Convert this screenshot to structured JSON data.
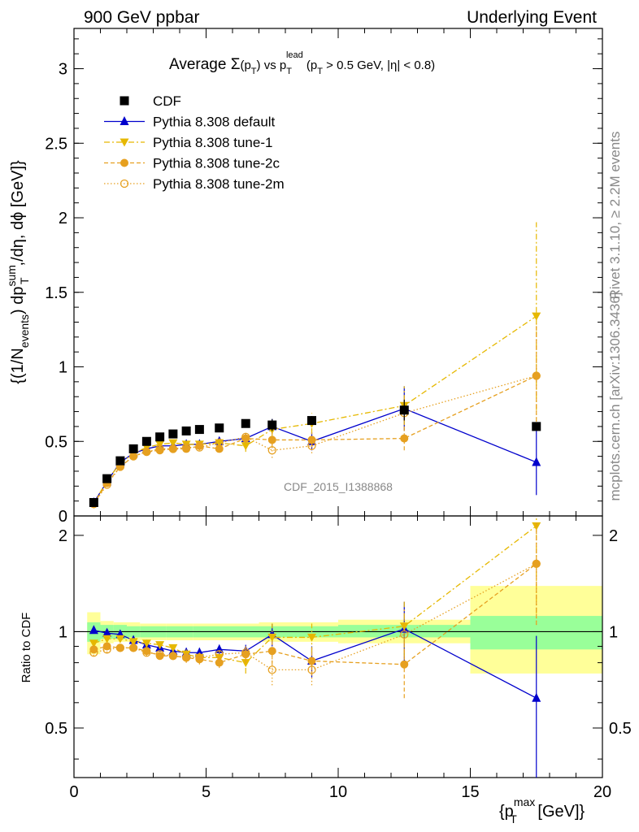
{
  "header": {
    "left": "900 GeV ppbar",
    "right": "Underlying Event"
  },
  "side_text": {
    "rivet": "Rivet 3.1.10, ≥ 2.2M events",
    "mcplots": "mcplots.cern.ch [arXiv:1306.3436]"
  },
  "chart_data": [
    {
      "type": "scatter",
      "panel": "main",
      "title_parts": {
        "a": "Average ",
        "sym": "Σ",
        "pt": "(p",
        "t": "T",
        "c": ") vs p",
        "lead": "lead",
        "t2": "T",
        "rest": " (p",
        "t3": "T",
        "rest2": " > 0.5 GeV, |η| < 0.8)"
      },
      "watermark": "CDF_2015_I1388868",
      "ylabel_parts": {
        "a": "{(1/N",
        "events": "events",
        "b": ") dp",
        "sum": "sum",
        "t": "T",
        "c": ",/dη, dϕ [GeV]}"
      },
      "xlim": [
        0,
        20
      ],
      "ylim": [
        0,
        3.27
      ],
      "y_ticks": [
        0,
        0.5,
        1,
        1.5,
        2,
        2.5,
        3
      ],
      "y_tick_labels": [
        "0",
        "0.5",
        "1",
        "1.5",
        "2",
        "2.5",
        "3"
      ],
      "x": [
        0.75,
        1.25,
        1.75,
        2.25,
        2.75,
        3.25,
        3.75,
        4.25,
        4.75,
        5.5,
        6.5,
        7.5,
        9.0,
        12.5,
        17.5
      ],
      "series": [
        {
          "name": "CDF",
          "style": "data",
          "color": "#000000",
          "values": [
            0.09,
            0.25,
            0.37,
            0.45,
            0.5,
            0.53,
            0.55,
            0.57,
            0.58,
            0.59,
            0.62,
            0.61,
            0.64,
            0.71,
            0.6
          ],
          "errors": [
            0.01,
            0.01,
            0.01,
            0.01,
            0.01,
            0.01,
            0.01,
            0.01,
            0.01,
            0.02,
            0.02,
            0.04,
            0.03,
            0.07,
            0.02
          ]
        },
        {
          "name": "Pythia 8.308 default",
          "style": "default",
          "color": "#0000cc",
          "values": [
            0.09,
            0.23,
            0.36,
            0.42,
            0.45,
            0.47,
            0.47,
            0.48,
            0.48,
            0.5,
            0.52,
            0.6,
            0.5,
            0.72,
            0.36
          ],
          "errors": [
            0.005,
            0.01,
            0.01,
            0.01,
            0.01,
            0.015,
            0.015,
            0.02,
            0.02,
            0.02,
            0.03,
            0.05,
            0.06,
            0.15,
            0.22
          ]
        },
        {
          "name": "Pythia 8.308 tune-1",
          "style": "tune1",
          "color": "#e6b800",
          "values": [
            0.08,
            0.24,
            0.35,
            0.42,
            0.46,
            0.48,
            0.49,
            0.48,
            0.48,
            0.49,
            0.47,
            0.58,
            0.62,
            0.74,
            1.34
          ],
          "errors": [
            0.005,
            0.01,
            0.01,
            0.01,
            0.01,
            0.015,
            0.015,
            0.02,
            0.02,
            0.03,
            0.04,
            0.06,
            0.07,
            0.13,
            0.63
          ]
        },
        {
          "name": "Pythia 8.308 tune-2c",
          "style": "tune2c",
          "color": "#e6a020",
          "values": [
            0.08,
            0.22,
            0.33,
            0.4,
            0.43,
            0.44,
            0.45,
            0.45,
            0.47,
            0.45,
            0.52,
            0.51,
            0.51,
            0.52,
            0.94
          ],
          "errors": [
            0.005,
            0.01,
            0.01,
            0.01,
            0.01,
            0.015,
            0.015,
            0.02,
            0.02,
            0.02,
            0.03,
            0.05,
            0.05,
            0.08,
            0.35
          ]
        },
        {
          "name": "Pythia 8.308 tune-2m",
          "style": "tune2m",
          "color": "#e6a020",
          "values": [
            0.08,
            0.21,
            0.33,
            0.4,
            0.43,
            0.45,
            0.45,
            0.46,
            0.46,
            0.49,
            0.53,
            0.44,
            0.47,
            0.69,
            0.94
          ],
          "errors": [
            0.005,
            0.01,
            0.01,
            0.01,
            0.01,
            0.015,
            0.015,
            0.02,
            0.02,
            0.02,
            0.03,
            0.05,
            0.05,
            0.12,
            0.35
          ]
        }
      ]
    },
    {
      "type": "scatter",
      "panel": "ratio",
      "ylabel": "Ratio to CDF",
      "xlabel_parts": {
        "a": "{p",
        "max": "max",
        "t": "T",
        "b": " [GeV]}"
      },
      "xlim": [
        0,
        20
      ],
      "ylim": [
        0.35,
        2.3
      ],
      "y_ticks": [
        0.5,
        1,
        2
      ],
      "y_tick_labels": [
        "0.5",
        "1",
        "2"
      ],
      "x_ticks": [
        0,
        5,
        10,
        15,
        20
      ],
      "x_tick_labels": [
        "0",
        "5",
        "10",
        "15",
        "20"
      ],
      "bin_edges": [
        0.5,
        1.0,
        1.5,
        2.0,
        2.5,
        3.0,
        3.5,
        4.0,
        4.5,
        5.0,
        6.0,
        7.0,
        8.0,
        10.0,
        15.0,
        20.0
      ],
      "band_stat_lo": [
        0.93,
        0.95,
        0.95,
        0.96,
        0.96,
        0.96,
        0.96,
        0.96,
        0.96,
        0.96,
        0.96,
        0.96,
        0.96,
        0.96,
        0.88
      ],
      "band_stat_hi": [
        1.07,
        1.05,
        1.05,
        1.04,
        1.04,
        1.04,
        1.04,
        1.04,
        1.04,
        1.04,
        1.04,
        1.04,
        1.04,
        1.05,
        1.12
      ],
      "band_tot_lo": [
        0.85,
        0.92,
        0.93,
        0.93,
        0.94,
        0.94,
        0.94,
        0.94,
        0.94,
        0.94,
        0.94,
        0.93,
        0.93,
        0.92,
        0.74
      ],
      "band_tot_hi": [
        1.15,
        1.08,
        1.07,
        1.07,
        1.06,
        1.06,
        1.06,
        1.06,
        1.06,
        1.06,
        1.06,
        1.07,
        1.07,
        1.09,
        1.39
      ],
      "ratio_series": [
        {
          "name": "Pythia 8.308 default",
          "style": "default",
          "color": "#0000cc",
          "values": [
            1.01,
            0.99,
            0.98,
            0.94,
            0.91,
            0.89,
            0.87,
            0.86,
            0.86,
            0.88,
            0.87,
            0.98,
            0.81,
            1.02,
            0.62
          ],
          "errors": [
            0.02,
            0.02,
            0.02,
            0.02,
            0.02,
            0.02,
            0.02,
            0.03,
            0.03,
            0.03,
            0.04,
            0.08,
            0.09,
            0.22,
            0.35
          ]
        },
        {
          "name": "Pythia 8.308 tune-1",
          "style": "tune1",
          "color": "#e6b800",
          "values": [
            0.92,
            0.95,
            0.95,
            0.93,
            0.92,
            0.91,
            0.89,
            0.85,
            0.83,
            0.83,
            0.8,
            0.96,
            0.96,
            1.04,
            2.14
          ],
          "errors": [
            0.02,
            0.02,
            0.02,
            0.02,
            0.02,
            0.02,
            0.02,
            0.03,
            0.03,
            0.04,
            0.06,
            0.1,
            0.1,
            0.2,
            1.0
          ]
        },
        {
          "name": "Pythia 8.308 tune-2c",
          "style": "tune2c",
          "color": "#e6a020",
          "values": [
            0.88,
            0.9,
            0.89,
            0.89,
            0.87,
            0.84,
            0.84,
            0.83,
            0.82,
            0.8,
            0.85,
            0.87,
            0.81,
            0.79,
            1.63
          ],
          "errors": [
            0.02,
            0.02,
            0.02,
            0.02,
            0.02,
            0.02,
            0.02,
            0.03,
            0.03,
            0.03,
            0.05,
            0.08,
            0.08,
            0.17,
            0.58
          ]
        },
        {
          "name": "Pythia 8.308 tune-2m",
          "style": "tune2m",
          "color": "#e6a020",
          "values": [
            0.86,
            0.88,
            0.89,
            0.89,
            0.86,
            0.85,
            0.84,
            0.83,
            0.83,
            0.85,
            0.86,
            0.76,
            0.76,
            0.98,
            1.63
          ],
          "errors": [
            0.02,
            0.02,
            0.02,
            0.02,
            0.02,
            0.02,
            0.02,
            0.03,
            0.03,
            0.03,
            0.05,
            0.08,
            0.08,
            0.2,
            0.58
          ]
        }
      ]
    }
  ]
}
